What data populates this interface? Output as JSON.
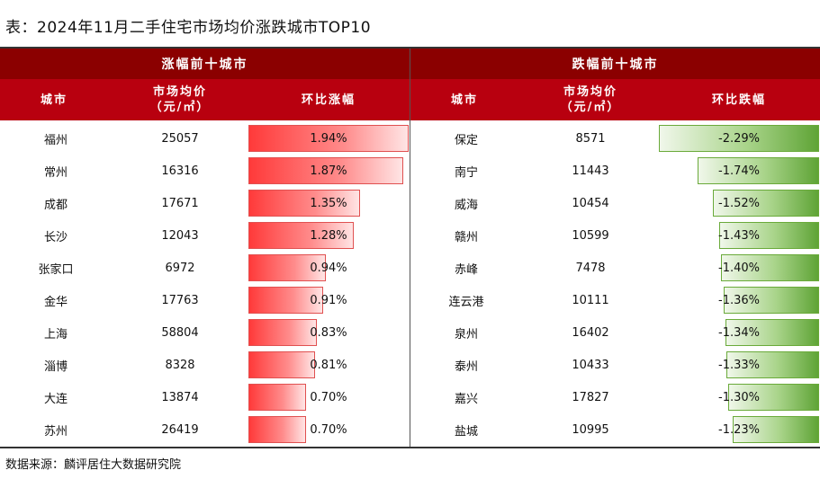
{
  "title": "表：2024年11月二手住宅市场均价涨跌城市TOP10",
  "source": "数据来源：麟评居住大数据研究院",
  "rise": {
    "header": "涨幅前十城市",
    "col_city": "城市",
    "col_price": [
      "市场均价",
      "（元/㎡）"
    ],
    "col_change": "环比涨幅",
    "rows": [
      {
        "city": "福州",
        "price": "25057",
        "change": "1.94%",
        "value": 1.94
      },
      {
        "city": "常州",
        "price": "16316",
        "change": "1.87%",
        "value": 1.87
      },
      {
        "city": "成都",
        "price": "17671",
        "change": "1.35%",
        "value": 1.35
      },
      {
        "city": "长沙",
        "price": "12043",
        "change": "1.28%",
        "value": 1.28
      },
      {
        "city": "张家口",
        "price": "6972",
        "change": "0.94%",
        "value": 0.94
      },
      {
        "city": "金华",
        "price": "17763",
        "change": "0.91%",
        "value": 0.91
      },
      {
        "city": "上海",
        "price": "58804",
        "change": "0.83%",
        "value": 0.83
      },
      {
        "city": "淄博",
        "price": "8328",
        "change": "0.81%",
        "value": 0.81
      },
      {
        "city": "大连",
        "price": "13874",
        "change": "0.70%",
        "value": 0.7
      },
      {
        "city": "苏州",
        "price": "26419",
        "change": "0.70%",
        "value": 0.7
      }
    ]
  },
  "fall": {
    "header": "跌幅前十城市",
    "col_city": "城市",
    "col_price": [
      "市场均价",
      "（元/㎡）"
    ],
    "col_change": "环比跌幅",
    "rows": [
      {
        "city": "保定",
        "price": "8571",
        "change": "-2.29%",
        "value": -2.29
      },
      {
        "city": "南宁",
        "price": "11443",
        "change": "-1.74%",
        "value": -1.74
      },
      {
        "city": "威海",
        "price": "10454",
        "change": "-1.52%",
        "value": -1.52
      },
      {
        "city": "赣州",
        "price": "10599",
        "change": "-1.43%",
        "value": -1.43
      },
      {
        "city": "赤峰",
        "price": "7478",
        "change": "-1.40%",
        "value": -1.4
      },
      {
        "city": "连云港",
        "price": "10111",
        "change": "-1.36%",
        "value": -1.36
      },
      {
        "city": "泉州",
        "price": "16402",
        "change": "-1.34%",
        "value": -1.34
      },
      {
        "city": "泰州",
        "price": "10433",
        "change": "-1.33%",
        "value": -1.33
      },
      {
        "city": "嘉兴",
        "price": "17827",
        "change": "-1.30%",
        "value": -1.3
      },
      {
        "city": "盐城",
        "price": "10995",
        "change": "-1.23%",
        "value": -1.23
      }
    ]
  },
  "colors": {
    "rise_header": "#8b0000",
    "sub_header": "#b8000f",
    "rise_bar": "#ff3a3a",
    "fall_bar": "#5fa436"
  }
}
